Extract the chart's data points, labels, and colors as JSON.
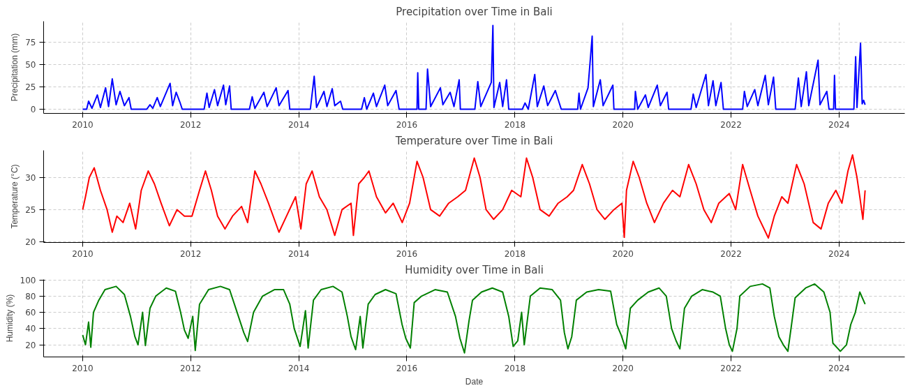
{
  "chart_data": [
    {
      "type": "line",
      "title": "Precipitation over Time in Bali",
      "ylabel": "Precipitation (mm)",
      "grid": true,
      "xlim": [
        "2009-04-12",
        "2025-03-20"
      ],
      "ylim": [
        -4.7,
        98.7
      ],
      "yticks": [
        0,
        25,
        50,
        75
      ],
      "xticks": [
        {
          "value": "2010-01-01",
          "label": "2010"
        },
        {
          "value": "2012-01-01",
          "label": "2012"
        },
        {
          "value": "2014-01-01",
          "label": "2014"
        },
        {
          "value": "2016-01-01",
          "label": "2016"
        },
        {
          "value": "2018-01-01",
          "label": "2018"
        },
        {
          "value": "2020-01-01",
          "label": "2020"
        },
        {
          "value": "2022-01-01",
          "label": "2022"
        },
        {
          "value": "2024-01-01",
          "label": "2024"
        }
      ],
      "series": [
        {
          "color": "#0000ff",
          "x": [
            "2010-01-01",
            "2010-01-28",
            "2010-02-10",
            "2010-03-05",
            "2010-04-10",
            "2010-05-01",
            "2010-06-05",
            "2010-06-25",
            "2010-07-20",
            "2010-08-15",
            "2010-09-10",
            "2010-10-10",
            "2010-11-10",
            "2010-11-25",
            "2011-03-10",
            "2011-04-01",
            "2011-04-20",
            "2011-05-20",
            "2011-06-10",
            "2011-08-15",
            "2011-09-01",
            "2011-09-25",
            "2011-10-20",
            "2011-11-05",
            "2012-04-01",
            "2012-04-20",
            "2012-05-05",
            "2012-06-10",
            "2012-07-01",
            "2012-08-10",
            "2012-08-25",
            "2012-09-20",
            "2012-10-01",
            "2013-02-01",
            "2013-02-20",
            "2013-03-10",
            "2013-05-10",
            "2013-06-01",
            "2013-08-01",
            "2013-08-20",
            "2013-10-20",
            "2013-11-01",
            "2014-03-20",
            "2014-04-15",
            "2014-05-01",
            "2014-06-20",
            "2014-07-10",
            "2014-08-15",
            "2014-09-01",
            "2014-10-10",
            "2014-10-25",
            "2015-03-01",
            "2015-03-20",
            "2015-04-05",
            "2015-05-20",
            "2015-06-10",
            "2015-08-05",
            "2015-08-25",
            "2015-10-20",
            "2015-11-10",
            "2016-03-10",
            "2016-03-15",
            "2016-03-22",
            "2016-05-10",
            "2016-05-20",
            "2016-06-10",
            "2016-08-15",
            "2016-09-01",
            "2016-10-20",
            "2016-11-15",
            "2016-12-20",
            "2016-12-28",
            "2017-04-05",
            "2017-04-25",
            "2017-05-15",
            "2017-07-25",
            "2017-08-05",
            "2017-08-12",
            "2017-09-20",
            "2017-10-10",
            "2017-11-05",
            "2017-11-20",
            "2018-02-20",
            "2018-03-10",
            "2018-04-01",
            "2018-05-15",
            "2018-06-01",
            "2018-07-15",
            "2018-08-10",
            "2018-10-01",
            "2018-11-10",
            "2019-03-01",
            "2019-03-10",
            "2019-03-20",
            "2019-05-10",
            "2019-06-07",
            "2019-06-15",
            "2019-08-01",
            "2019-08-20",
            "2019-10-25",
            "2019-11-01",
            "2020-03-20",
            "2020-03-25",
            "2020-04-10",
            "2020-06-01",
            "2020-06-20",
            "2020-08-20",
            "2020-09-10",
            "2020-10-25",
            "2020-11-05",
            "2021-04-05",
            "2021-04-20",
            "2021-05-10",
            "2021-07-15",
            "2021-08-01",
            "2021-09-01",
            "2021-09-20",
            "2021-10-25",
            "2021-11-10",
            "2022-03-20",
            "2022-04-01",
            "2022-04-20",
            "2022-06-10",
            "2022-07-01",
            "2022-08-20",
            "2022-09-10",
            "2022-10-15",
            "2022-10-30",
            "2023-03-10",
            "2023-04-01",
            "2023-04-20",
            "2023-05-25",
            "2023-06-10",
            "2023-08-12",
            "2023-08-25",
            "2023-10-10",
            "2023-10-25",
            "2023-11-25",
            "2023-12-01",
            "2023-12-08",
            "2024-04-10",
            "2024-04-22",
            "2024-05-01",
            "2024-05-25",
            "2024-06-05",
            "2024-06-15",
            "2024-06-25"
          ],
          "values": [
            0,
            0,
            9,
            1,
            16,
            2,
            24,
            3,
            34,
            5,
            20,
            4,
            13,
            0,
            0,
            5,
            1,
            13,
            3,
            29,
            4,
            19,
            8,
            0,
            0,
            18,
            2,
            22,
            4,
            27,
            5,
            26,
            0,
            0,
            14,
            1,
            19,
            3,
            24,
            4,
            21,
            0,
            0,
            37,
            2,
            20,
            3,
            23,
            4,
            9,
            0,
            0,
            13,
            0,
            18,
            3,
            27,
            4,
            21,
            0,
            0,
            41,
            0,
            0,
            45,
            3,
            24,
            5,
            19,
            3,
            33,
            0,
            0,
            31,
            3,
            30,
            94,
            2,
            30,
            3,
            33,
            0,
            0,
            7,
            0,
            39,
            3,
            26,
            4,
            21,
            0,
            0,
            18,
            0,
            24,
            82,
            3,
            33,
            4,
            27,
            0,
            0,
            20,
            0,
            16,
            2,
            27,
            4,
            19,
            0,
            0,
            17,
            2,
            39,
            4,
            32,
            4,
            30,
            0,
            0,
            20,
            3,
            22,
            4,
            38,
            5,
            36,
            0,
            0,
            35,
            3,
            42,
            4,
            55,
            5,
            20,
            0,
            0,
            38,
            0,
            0,
            59,
            2,
            74,
            6,
            10,
            5
          ]
        }
      ]
    },
    {
      "type": "line",
      "title": "Temperature over Time in Bali",
      "ylabel": "Temperature (°C)",
      "grid": true,
      "xlim": [
        "2009-04-12",
        "2025-03-20"
      ],
      "ylim": [
        19.9,
        34.2
      ],
      "yticks": [
        20,
        25,
        30
      ],
      "xticks": [
        {
          "value": "2010-01-01",
          "label": "2010"
        },
        {
          "value": "2012-01-01",
          "label": "2012"
        },
        {
          "value": "2014-01-01",
          "label": "2014"
        },
        {
          "value": "2016-01-01",
          "label": "2016"
        },
        {
          "value": "2018-01-01",
          "label": "2018"
        },
        {
          "value": "2020-01-01",
          "label": "2020"
        },
        {
          "value": "2022-01-01",
          "label": "2022"
        },
        {
          "value": "2024-01-01",
          "label": "2024"
        }
      ],
      "series": [
        {
          "color": "#ff0000",
          "x": [
            "2010-01-01",
            "2010-01-20",
            "2010-02-15",
            "2010-03-20",
            "2010-05-01",
            "2010-06-15",
            "2010-07-20",
            "2010-08-20",
            "2010-10-01",
            "2010-11-15",
            "2010-12-25",
            "2011-02-01",
            "2011-03-20",
            "2011-05-01",
            "2011-06-15",
            "2011-08-10",
            "2011-10-01",
            "2011-11-20",
            "2012-01-10",
            "2012-03-01",
            "2012-04-10",
            "2012-05-20",
            "2012-07-01",
            "2012-08-20",
            "2012-10-10",
            "2012-12-10",
            "2013-01-20",
            "2013-03-10",
            "2013-04-20",
            "2013-06-10",
            "2013-08-20",
            "2013-10-10",
            "2013-12-10",
            "2014-01-15",
            "2014-02-20",
            "2014-04-01",
            "2014-05-20",
            "2014-07-10",
            "2014-09-01",
            "2014-10-20",
            "2014-12-20",
            "2015-01-05",
            "2015-02-10",
            "2015-03-20",
            "2015-04-20",
            "2015-06-10",
            "2015-08-10",
            "2015-10-01",
            "2015-12-01",
            "2016-01-20",
            "2016-03-10",
            "2016-04-20",
            "2016-06-10",
            "2016-08-10",
            "2016-10-10",
            "2016-12-10",
            "2017-02-01",
            "2017-04-01",
            "2017-05-10",
            "2017-06-20",
            "2017-08-10",
            "2017-10-10",
            "2017-12-10",
            "2018-02-10",
            "2018-03-20",
            "2018-05-01",
            "2018-06-20",
            "2018-08-20",
            "2018-10-20",
            "2018-12-20",
            "2019-02-01",
            "2019-04-01",
            "2019-05-20",
            "2019-07-10",
            "2019-09-01",
            "2019-11-01",
            "2019-12-25",
            "2020-01-10",
            "2020-01-25",
            "2020-03-10",
            "2020-04-20",
            "2020-06-10",
            "2020-08-01",
            "2020-10-01",
            "2020-12-01",
            "2021-01-20",
            "2021-03-20",
            "2021-05-10",
            "2021-07-01",
            "2021-08-20",
            "2021-10-10",
            "2021-12-20",
            "2022-02-01",
            "2022-03-20",
            "2022-05-10",
            "2022-07-01",
            "2022-09-10",
            "2022-10-20",
            "2022-12-10",
            "2023-01-20",
            "2023-03-20",
            "2023-05-10",
            "2023-07-10",
            "2023-09-01",
            "2023-10-20",
            "2023-12-10",
            "2024-01-20",
            "2024-03-01",
            "2024-04-01",
            "2024-05-01",
            "2024-05-20",
            "2024-06-10",
            "2024-06-25"
          ],
          "values": [
            25,
            27,
            30,
            31.5,
            28,
            25,
            21.5,
            24,
            23,
            26,
            22,
            28,
            31,
            29,
            26,
            22.5,
            25,
            24,
            24,
            28,
            31,
            28,
            24,
            22,
            24,
            25.5,
            23,
            31,
            29,
            26,
            21.5,
            24,
            27,
            22,
            29,
            31,
            27,
            25,
            21,
            25,
            26,
            21,
            29,
            30,
            31,
            27,
            24.5,
            26,
            23,
            26,
            32.5,
            30,
            25,
            24,
            26,
            27,
            28,
            33,
            30,
            25,
            23.5,
            25,
            28,
            27,
            33,
            30,
            25,
            24,
            26,
            27,
            28,
            32,
            29,
            25,
            23.5,
            25,
            26,
            20.7,
            28,
            32.5,
            30,
            26,
            23,
            26,
            28,
            27,
            32,
            29,
            25,
            23,
            26,
            27.5,
            25,
            32,
            28,
            24,
            20.6,
            24,
            27,
            26,
            32,
            29,
            23,
            22,
            26,
            28,
            26,
            31,
            33.5,
            30,
            27,
            23.5,
            28
          ]
        }
      ]
    },
    {
      "type": "line",
      "title": "Humidity over Time in Bali",
      "xlabel": "Date",
      "ylabel": "Humidity (%)",
      "grid": true,
      "xlim": [
        "2009-04-12",
        "2025-03-20"
      ],
      "ylim": [
        5,
        100.5
      ],
      "yticks": [
        20,
        40,
        60,
        80,
        100
      ],
      "xticks": [
        {
          "value": "2010-01-01",
          "label": "2010"
        },
        {
          "value": "2012-01-01",
          "label": "2012"
        },
        {
          "value": "2014-01-01",
          "label": "2014"
        },
        {
          "value": "2016-01-01",
          "label": "2016"
        },
        {
          "value": "2018-01-01",
          "label": "2018"
        },
        {
          "value": "2020-01-01",
          "label": "2020"
        },
        {
          "value": "2022-01-01",
          "label": "2022"
        },
        {
          "value": "2024-01-01",
          "label": "2024"
        }
      ],
      "series": [
        {
          "color": "#008000",
          "x": [
            "2010-01-01",
            "2010-01-20",
            "2010-02-10",
            "2010-02-25",
            "2010-03-15",
            "2010-04-20",
            "2010-06-01",
            "2010-08-15",
            "2010-10-10",
            "2010-11-20",
            "2010-12-20",
            "2011-01-10",
            "2011-02-10",
            "2011-03-01",
            "2011-04-01",
            "2011-05-10",
            "2011-07-20",
            "2011-09-20",
            "2011-10-25",
            "2011-11-20",
            "2011-12-15",
            "2012-01-15",
            "2012-02-01",
            "2012-03-01",
            "2012-05-01",
            "2012-07-20",
            "2012-09-20",
            "2012-11-10",
            "2012-12-25",
            "2013-01-20",
            "2013-03-01",
            "2013-05-01",
            "2013-07-20",
            "2013-09-20",
            "2013-11-01",
            "2013-12-01",
            "2014-01-10",
            "2014-02-15",
            "2014-03-05",
            "2014-04-10",
            "2014-06-01",
            "2014-08-20",
            "2014-10-20",
            "2014-11-25",
            "2014-12-20",
            "2015-01-20",
            "2015-02-20",
            "2015-03-10",
            "2015-04-15",
            "2015-06-01",
            "2015-08-10",
            "2015-10-20",
            "2015-11-30",
            "2015-12-25",
            "2016-01-25",
            "2016-02-20",
            "2016-04-10",
            "2016-07-10",
            "2016-10-01",
            "2016-11-25",
            "2016-12-25",
            "2017-01-25",
            "2017-02-25",
            "2017-03-20",
            "2017-05-20",
            "2017-08-01",
            "2017-10-10",
            "2017-11-20",
            "2017-12-20",
            "2018-01-20",
            "2018-02-15",
            "2018-03-05",
            "2018-04-15",
            "2018-06-20",
            "2018-09-10",
            "2018-11-05",
            "2018-12-01",
            "2018-12-25",
            "2019-01-20",
            "2019-02-20",
            "2019-05-01",
            "2019-07-20",
            "2019-10-10",
            "2019-11-20",
            "2019-12-20",
            "2020-01-20",
            "2020-02-20",
            "2020-04-10",
            "2020-06-20",
            "2020-09-01",
            "2020-10-20",
            "2020-11-25",
            "2020-12-25",
            "2021-01-20",
            "2021-02-20",
            "2021-04-10",
            "2021-06-20",
            "2021-09-01",
            "2021-10-20",
            "2021-11-25",
            "2021-12-20",
            "2022-01-10",
            "2022-02-10",
            "2022-03-01",
            "2022-05-10",
            "2022-08-01",
            "2022-09-20",
            "2022-10-20",
            "2022-11-20",
            "2022-12-20",
            "2023-01-20",
            "2023-02-10",
            "2023-03-10",
            "2023-05-20",
            "2023-07-20",
            "2023-09-20",
            "2023-11-01",
            "2023-11-20",
            "2024-01-10",
            "2024-02-20",
            "2024-03-20",
            "2024-04-20",
            "2024-05-20",
            "2024-06-25"
          ],
          "values": [
            32,
            20,
            48,
            17,
            60,
            75,
            88,
            92,
            82,
            55,
            30,
            20,
            60,
            19,
            65,
            80,
            90,
            86,
            60,
            38,
            28,
            55,
            13,
            70,
            88,
            92,
            88,
            60,
            35,
            24,
            60,
            80,
            88,
            88,
            70,
            40,
            18,
            62,
            16,
            75,
            88,
            92,
            85,
            55,
            30,
            14,
            55,
            16,
            70,
            82,
            88,
            83,
            45,
            28,
            16,
            72,
            80,
            88,
            85,
            55,
            28,
            10,
            50,
            75,
            85,
            90,
            85,
            55,
            18,
            25,
            60,
            20,
            80,
            90,
            88,
            75,
            35,
            15,
            30,
            75,
            85,
            88,
            86,
            45,
            32,
            15,
            65,
            75,
            85,
            90,
            80,
            40,
            25,
            15,
            65,
            80,
            88,
            85,
            80,
            40,
            20,
            12,
            40,
            80,
            92,
            95,
            90,
            55,
            30,
            20,
            12,
            40,
            78,
            90,
            95,
            85,
            60,
            22,
            12,
            20,
            45,
            60,
            85,
            70
          ]
        }
      ]
    }
  ]
}
